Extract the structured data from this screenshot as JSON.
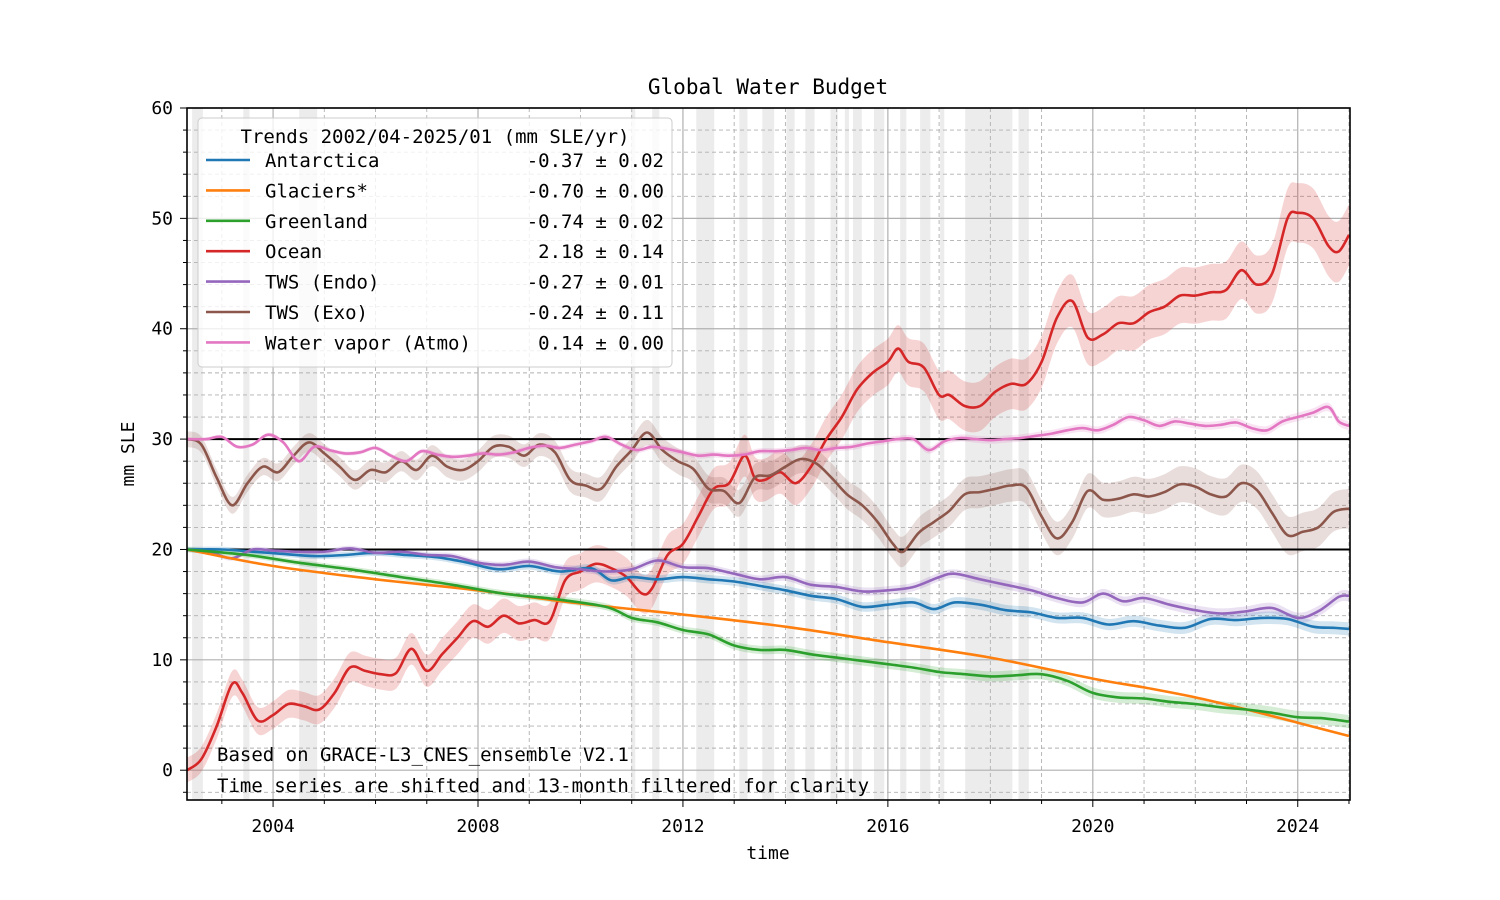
{
  "chart_data": {
    "type": "line",
    "title": "Global Water Budget",
    "xlabel": "time",
    "ylabel": "mm SLE",
    "xlim": [
      2002.32,
      2025.02
    ],
    "ylim": [
      -2.7,
      60
    ],
    "x_ticks": [
      2004,
      2008,
      2012,
      2016,
      2020,
      2024
    ],
    "x_tick_labels": [
      "2004",
      "2008",
      "2012",
      "2016",
      "2020",
      "2024"
    ],
    "x_minor_step": 1,
    "y_ticks": [
      0,
      10,
      20,
      30,
      40,
      50,
      60
    ],
    "y_tick_labels": [
      "0",
      "10",
      "20",
      "30",
      "40",
      "50",
      "60"
    ],
    "y_minor_step": 2,
    "grid": true,
    "reference_lines": [
      20,
      30
    ],
    "legend": {
      "title": "Trends 2002/04-2025/01 (mm SLE/yr)",
      "placement": "upper-left",
      "entries": [
        {
          "name": "Antarctica",
          "trend": "-0.37 ± 0.02",
          "color": "#1f77b4"
        },
        {
          "name": "Glaciers*",
          "trend": "-0.70 ± 0.00",
          "color": "#ff7f0e"
        },
        {
          "name": "Greenland",
          "trend": "-0.74 ± 0.02",
          "color": "#2ca02c"
        },
        {
          "name": "Ocean",
          "trend": "2.18 ± 0.14",
          "color": "#d62728"
        },
        {
          "name": "TWS (Endo)",
          "trend": "-0.27 ± 0.01",
          "color": "#9467bd"
        },
        {
          "name": "TWS (Exo)",
          "trend": "-0.24 ± 0.11",
          "color": "#8c564b"
        },
        {
          "name": "Water vapor (Atmo)",
          "trend": "0.14 ± 0.00",
          "color": "#e377c2"
        }
      ]
    },
    "annotations": [
      "Based on GRACE-L3_CNES_ensemble V2.1",
      "Time series are shifted and 13-month filtered for clarity"
    ],
    "gap_periods": [
      [
        2002.42,
        2002.63
      ],
      [
        2003.42,
        2003.54
      ],
      [
        2004.51,
        2004.86
      ],
      [
        2010.99,
        2011.07
      ],
      [
        2011.4,
        2011.54
      ],
      [
        2012.26,
        2012.61
      ],
      [
        2013.1,
        2013.26
      ],
      [
        2013.55,
        2013.78
      ],
      [
        2014.02,
        2014.18
      ],
      [
        2014.39,
        2014.57
      ],
      [
        2014.88,
        2015.02
      ],
      [
        2015.16,
        2015.24
      ],
      [
        2015.32,
        2015.49
      ],
      [
        2015.73,
        2015.93
      ],
      [
        2016.24,
        2016.36
      ],
      [
        2016.63,
        2016.83
      ],
      [
        2017.02,
        2017.1
      ],
      [
        2017.51,
        2018.43
      ],
      [
        2018.55,
        2018.75
      ]
    ],
    "series": [
      {
        "name": "Ocean",
        "color": "#d62728",
        "x": [
          2002.32,
          2002.6,
          2002.9,
          2003.2,
          2003.4,
          2003.7,
          2004.0,
          2004.3,
          2004.6,
          2004.9,
          2005.2,
          2005.5,
          2005.8,
          2006.1,
          2006.4,
          2006.7,
          2007.0,
          2007.3,
          2007.6,
          2007.9,
          2008.2,
          2008.5,
          2008.8,
          2009.1,
          2009.4,
          2009.7,
          2010.0,
          2010.3,
          2010.6,
          2010.9,
          2011.2,
          2011.4,
          2011.7,
          2012.0,
          2012.3,
          2012.6,
          2012.9,
          2013.2,
          2013.4,
          2013.6,
          2013.9,
          2014.2,
          2014.5,
          2014.8,
          2015.1,
          2015.4,
          2015.7,
          2016.0,
          2016.2,
          2016.4,
          2016.7,
          2017.0,
          2017.2,
          2017.5,
          2017.8,
          2018.1,
          2018.4,
          2018.7,
          2019.0,
          2019.3,
          2019.6,
          2019.9,
          2020.2,
          2020.5,
          2020.8,
          2021.1,
          2021.4,
          2021.7,
          2022.0,
          2022.3,
          2022.6,
          2022.9,
          2023.2,
          2023.5,
          2023.8,
          2024.0,
          2024.3,
          2024.6,
          2024.8,
          2025.0
        ],
        "y": [
          0.0,
          1.0,
          4.0,
          7.8,
          7.0,
          4.5,
          5.0,
          6.0,
          5.8,
          5.5,
          7.0,
          9.3,
          9.0,
          8.7,
          8.8,
          11.0,
          9.0,
          10.5,
          12.0,
          13.5,
          13.0,
          14.0,
          13.3,
          13.6,
          13.5,
          17.2,
          18.0,
          18.7,
          18.3,
          17.5,
          16.0,
          16.5,
          19.5,
          20.5,
          23.0,
          25.5,
          26.0,
          28.5,
          26.5,
          26.3,
          27.0,
          26.0,
          27.5,
          30.0,
          32.0,
          34.5,
          36.0,
          37.0,
          38.2,
          37.0,
          36.5,
          34.0,
          34.0,
          33.0,
          33.0,
          34.3,
          35.0,
          35.0,
          37.0,
          41.0,
          42.5,
          39.2,
          39.5,
          40.5,
          40.5,
          41.5,
          42.0,
          43.0,
          43.0,
          43.3,
          43.5,
          45.3,
          44.0,
          45.0,
          50.0,
          50.5,
          50.0,
          47.5,
          47.0,
          48.5
        ],
        "band": 2.8
      },
      {
        "name": "TWS (Exo)",
        "color": "#8c564b",
        "x": [
          2002.32,
          2002.6,
          2002.9,
          2003.2,
          2003.5,
          2003.8,
          2004.1,
          2004.4,
          2004.7,
          2005.0,
          2005.3,
          2005.6,
          2005.9,
          2006.2,
          2006.5,
          2006.8,
          2007.1,
          2007.4,
          2007.7,
          2008.0,
          2008.3,
          2008.6,
          2008.9,
          2009.2,
          2009.5,
          2009.8,
          2010.1,
          2010.4,
          2010.7,
          2011.0,
          2011.3,
          2011.6,
          2011.9,
          2012.2,
          2012.5,
          2012.8,
          2013.1,
          2013.4,
          2013.7,
          2014.0,
          2014.3,
          2014.6,
          2014.9,
          2015.2,
          2015.5,
          2015.8,
          2016.1,
          2016.3,
          2016.6,
          2016.9,
          2017.2,
          2017.5,
          2017.8,
          2018.1,
          2018.4,
          2018.7,
          2019.0,
          2019.3,
          2019.6,
          2019.9,
          2020.2,
          2020.5,
          2020.8,
          2021.1,
          2021.4,
          2021.7,
          2022.0,
          2022.3,
          2022.6,
          2022.9,
          2023.2,
          2023.5,
          2023.8,
          2024.1,
          2024.4,
          2024.7,
          2025.0
        ],
        "y": [
          30.0,
          29.5,
          26.5,
          24.0,
          26.0,
          27.5,
          27.0,
          28.5,
          29.7,
          28.7,
          27.5,
          26.3,
          27.2,
          27.0,
          28.0,
          27.2,
          28.5,
          27.5,
          27.2,
          28.0,
          29.3,
          29.3,
          28.5,
          29.5,
          28.8,
          26.3,
          25.8,
          25.5,
          27.5,
          29.0,
          30.6,
          29.0,
          28.0,
          27.3,
          25.5,
          25.3,
          24.2,
          26.5,
          26.7,
          27.5,
          28.2,
          27.8,
          26.5,
          25.0,
          24.0,
          22.5,
          20.5,
          19.8,
          21.5,
          22.5,
          23.5,
          25.0,
          25.2,
          25.5,
          25.8,
          25.6,
          23.0,
          21.0,
          22.5,
          25.3,
          24.5,
          24.6,
          25.0,
          24.8,
          25.2,
          25.9,
          25.7,
          25.0,
          24.8,
          26.0,
          25.4,
          23.3,
          21.3,
          21.6,
          22.0,
          23.4,
          23.7
        ],
        "band": 1.8
      },
      {
        "name": "Water vapor (Atmo)",
        "color": "#e377c2",
        "x": [
          2002.32,
          2002.7,
          2003.0,
          2003.3,
          2003.6,
          2003.9,
          2004.2,
          2004.5,
          2004.8,
          2005.1,
          2005.4,
          2005.7,
          2006.0,
          2006.3,
          2006.6,
          2006.9,
          2007.2,
          2007.5,
          2007.8,
          2008.1,
          2008.4,
          2008.7,
          2009.0,
          2009.3,
          2009.6,
          2009.9,
          2010.2,
          2010.5,
          2010.8,
          2011.1,
          2011.4,
          2011.7,
          2012.0,
          2012.3,
          2012.6,
          2012.9,
          2013.2,
          2013.5,
          2013.8,
          2014.1,
          2014.4,
          2014.7,
          2015.0,
          2015.3,
          2015.6,
          2015.9,
          2016.2,
          2016.5,
          2016.8,
          2017.1,
          2017.4,
          2017.7,
          2018.0,
          2018.3,
          2018.6,
          2018.9,
          2019.2,
          2019.5,
          2019.8,
          2020.1,
          2020.4,
          2020.7,
          2021.0,
          2021.3,
          2021.6,
          2021.9,
          2022.2,
          2022.5,
          2022.8,
          2023.1,
          2023.4,
          2023.7,
          2024.0,
          2024.3,
          2024.6,
          2024.8,
          2025.0
        ],
        "y": [
          30.0,
          30.0,
          30.2,
          29.3,
          29.5,
          30.4,
          29.7,
          28.0,
          29.3,
          29.0,
          28.7,
          28.8,
          29.2,
          28.5,
          28.0,
          28.9,
          28.6,
          28.4,
          28.5,
          28.7,
          28.6,
          28.8,
          29.2,
          29.4,
          29.2,
          29.5,
          29.8,
          30.2,
          29.5,
          29.0,
          29.3,
          29.1,
          28.8,
          28.5,
          28.6,
          28.5,
          28.6,
          28.9,
          28.9,
          29.0,
          29.2,
          29.0,
          29.2,
          29.3,
          29.6,
          29.8,
          30.0,
          30.0,
          29.0,
          29.8,
          30.1,
          30.0,
          29.9,
          30.0,
          30.1,
          30.3,
          30.5,
          30.8,
          31.0,
          30.8,
          31.3,
          32.0,
          31.7,
          31.2,
          31.6,
          31.4,
          31.2,
          31.3,
          31.5,
          31.0,
          30.8,
          31.6,
          32.0,
          32.4,
          32.9,
          31.6,
          31.2
        ],
        "band": 0.4
      },
      {
        "name": "Antarctica",
        "color": "#1f77b4",
        "x": [
          2002.32,
          2003.0,
          2003.6,
          2004.2,
          2004.8,
          2005.4,
          2006.0,
          2006.6,
          2007.2,
          2007.8,
          2008.4,
          2009.0,
          2009.6,
          2010.2,
          2010.6,
          2011.0,
          2011.5,
          2012.0,
          2012.5,
          2013.0,
          2013.5,
          2014.0,
          2014.5,
          2015.0,
          2015.5,
          2016.0,
          2016.5,
          2016.9,
          2017.3,
          2017.8,
          2018.3,
          2018.8,
          2019.3,
          2019.8,
          2020.3,
          2020.8,
          2021.3,
          2021.8,
          2022.3,
          2022.8,
          2023.3,
          2023.8,
          2024.3,
          2024.7,
          2025.0
        ],
        "y": [
          20.0,
          20.0,
          19.8,
          19.6,
          19.4,
          19.5,
          19.7,
          19.5,
          19.3,
          18.8,
          18.2,
          18.5,
          18.0,
          18.3,
          17.2,
          17.5,
          17.3,
          17.5,
          17.3,
          17.1,
          16.7,
          16.3,
          15.8,
          15.5,
          14.8,
          15.0,
          15.2,
          14.6,
          15.2,
          15.0,
          14.5,
          14.3,
          13.8,
          13.8,
          13.2,
          13.5,
          13.1,
          12.9,
          13.7,
          13.6,
          13.8,
          13.7,
          13.0,
          12.9,
          12.8
        ],
        "band": 0.6
      },
      {
        "name": "TWS (Endo)",
        "color": "#9467bd",
        "x": [
          2002.32,
          2002.8,
          2003.2,
          2003.6,
          2004.0,
          2004.5,
          2005.0,
          2005.5,
          2006.0,
          2006.5,
          2007.0,
          2007.5,
          2008.0,
          2008.5,
          2009.0,
          2009.5,
          2010.0,
          2010.5,
          2011.0,
          2011.5,
          2012.0,
          2012.5,
          2013.0,
          2013.5,
          2014.0,
          2014.5,
          2015.0,
          2015.5,
          2016.0,
          2016.5,
          2017.0,
          2017.3,
          2017.8,
          2018.3,
          2018.8,
          2019.3,
          2019.8,
          2020.2,
          2020.6,
          2021.0,
          2021.5,
          2022.0,
          2022.5,
          2023.0,
          2023.5,
          2024.0,
          2024.4,
          2024.8,
          2025.0
        ],
        "y": [
          20.0,
          19.7,
          19.2,
          20.0,
          19.9,
          19.8,
          19.8,
          20.1,
          19.7,
          19.8,
          19.5,
          19.4,
          18.8,
          18.6,
          18.9,
          18.4,
          18.2,
          18.0,
          18.2,
          19.0,
          18.4,
          18.3,
          17.8,
          17.3,
          17.5,
          16.8,
          16.6,
          16.2,
          16.3,
          16.6,
          17.5,
          17.8,
          17.3,
          16.8,
          16.3,
          15.6,
          15.2,
          16.0,
          15.3,
          15.6,
          15.0,
          14.5,
          14.2,
          14.4,
          14.7,
          13.8,
          14.4,
          15.7,
          15.8
        ],
        "band": 0.5
      },
      {
        "name": "Glaciers*",
        "color": "#ff7f0e",
        "x": [
          2002.32,
          2004.0,
          2006.0,
          2008.0,
          2010.0,
          2012.0,
          2014.0,
          2016.0,
          2018.0,
          2020.0,
          2021.0,
          2022.0,
          2023.0,
          2024.0,
          2025.0
        ],
        "y": [
          20.0,
          18.5,
          17.3,
          16.3,
          15.1,
          14.1,
          13.0,
          11.6,
          10.2,
          8.3,
          7.5,
          6.6,
          5.5,
          4.3,
          3.1
        ],
        "band": 0.0
      },
      {
        "name": "Greenland",
        "color": "#2ca02c",
        "x": [
          2002.32,
          2003.5,
          2004.5,
          2005.5,
          2006.5,
          2007.5,
          2008.5,
          2009.5,
          2010.5,
          2011.0,
          2011.5,
          2012.0,
          2012.5,
          2013.0,
          2013.5,
          2014.0,
          2014.5,
          2015.0,
          2015.5,
          2016.0,
          2016.5,
          2017.0,
          2017.5,
          2018.0,
          2018.5,
          2019.0,
          2019.5,
          2020.0,
          2020.5,
          2021.0,
          2021.5,
          2022.0,
          2022.5,
          2023.0,
          2023.5,
          2024.0,
          2024.5,
          2025.0
        ],
        "y": [
          20.0,
          19.5,
          18.8,
          18.2,
          17.5,
          16.8,
          16.0,
          15.5,
          14.8,
          13.8,
          13.4,
          12.7,
          12.3,
          11.3,
          10.9,
          10.9,
          10.5,
          10.2,
          9.9,
          9.6,
          9.3,
          8.9,
          8.7,
          8.5,
          8.6,
          8.7,
          8.1,
          7.0,
          6.6,
          6.5,
          6.2,
          6.0,
          5.7,
          5.5,
          5.2,
          4.8,
          4.7,
          4.4
        ],
        "band": 0.6
      }
    ]
  }
}
